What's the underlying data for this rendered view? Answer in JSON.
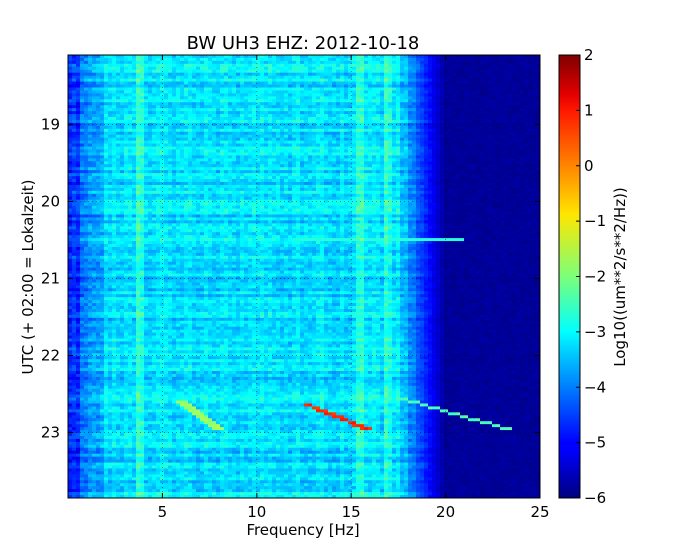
{
  "chart_data": {
    "type": "heatmap",
    "title": "BW UH3 EHZ: 2012-10-18",
    "xlabel": "Frequency [Hz]",
    "ylabel": "UTC (+ 02:00 = Lokalzeit)",
    "colorbar_label": "Log10((um**2/s**2/Hz))",
    "xlim": [
      0,
      25
    ],
    "ylim": [
      18.1,
      23.85
    ],
    "y_inverted": true,
    "clim": [
      -6,
      2
    ],
    "colormap": "jet",
    "x_ticks": [
      5,
      10,
      15,
      20,
      25
    ],
    "y_ticks": [
      19,
      20,
      21,
      22,
      23
    ],
    "colorbar_ticks": [
      2,
      1,
      0,
      -1,
      -2,
      -3,
      -4,
      -5,
      -6
    ],
    "grid": true,
    "features": {
      "background_level_low_freq": -3.4,
      "background_level_mid_freq": -3.2,
      "rolloff_frequency_hz": 17.5,
      "floor_level_above_rolloff": -5.8,
      "persistent_lines_hz": [
        3.8,
        15.4,
        16.9
      ],
      "burst_event": {
        "time_utc": 20.5,
        "freq_range_hz": [
          12,
          21
        ],
        "level": -2.7
      },
      "chirp_events": [
        {
          "freq_start_hz": 6.0,
          "freq_end_hz": 8.0,
          "time_start_utc": 22.6,
          "time_end_utc": 22.97,
          "level": -1.8
        },
        {
          "freq_start_hz": 12.5,
          "freq_end_hz": 16.0,
          "time_start_utc": 22.62,
          "time_end_utc": 22.97,
          "level": 0.7
        },
        {
          "freq_start_hz": 17.5,
          "freq_end_hz": 23.5,
          "time_start_utc": 22.55,
          "time_end_utc": 22.97,
          "level": -2.4
        }
      ]
    }
  }
}
